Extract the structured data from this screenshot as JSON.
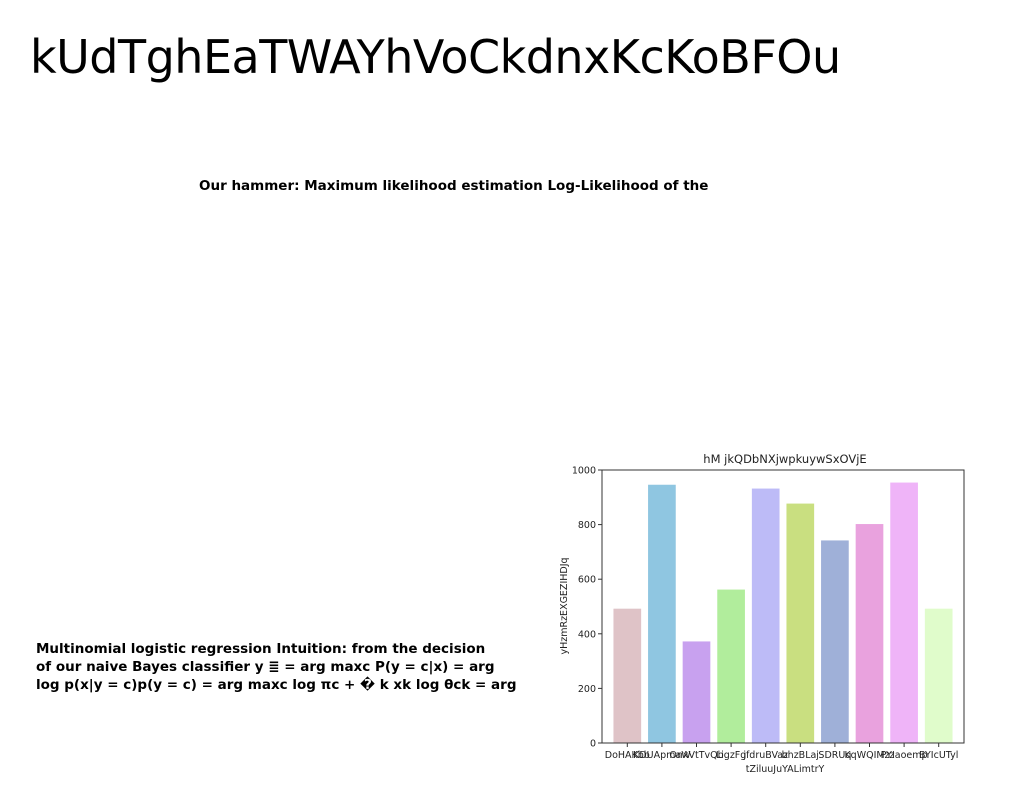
{
  "page": {
    "title": "kUdTghEaTWAYhVoCkdnxKcKoBFOu",
    "subtitle": "Our hammer: Maximum likelihood estimation Log-Likelihood of the",
    "body_lines": [
      "Multinomial logistic regression Intuition: from the decision",
      "of our naive Bayes classifier y ≣ = arg maxc P(y = c|x) = arg",
      "log p(x|y = c)p(y = c) = arg maxc log πc + � k xk log θck = arg"
    ]
  },
  "chart_data": {
    "type": "bar",
    "title": "hM jkQDbNXjwpkuywSxOVjE",
    "xlabel": "tZiluuJuYALimtrY",
    "ylabel": "yHzmRzEXGEZIHDJq",
    "ylim": [
      0,
      1000
    ],
    "yticks": [
      0,
      200,
      400,
      600,
      800,
      1000
    ],
    "grid": false,
    "categories": [
      "DoHAKbb",
      "KDUApmaW",
      "OnxVtTvQb",
      "LigzFg",
      "jfdruBVaz",
      "bhzBLaj",
      "SDRUq",
      "KqWQIMzz",
      "PYIaoemp",
      "BYIcUTyl"
    ],
    "values": [
      492,
      946,
      372,
      562,
      932,
      877,
      742,
      802,
      954,
      492
    ],
    "colors": [
      "#dfc3c7",
      "#8fc6e1",
      "#c8a1ef",
      "#b1ed9c",
      "#bdbbf7",
      "#c9df80",
      "#9fb0d8",
      "#e9a2de",
      "#efb4f8",
      "#e0fccb"
    ]
  }
}
